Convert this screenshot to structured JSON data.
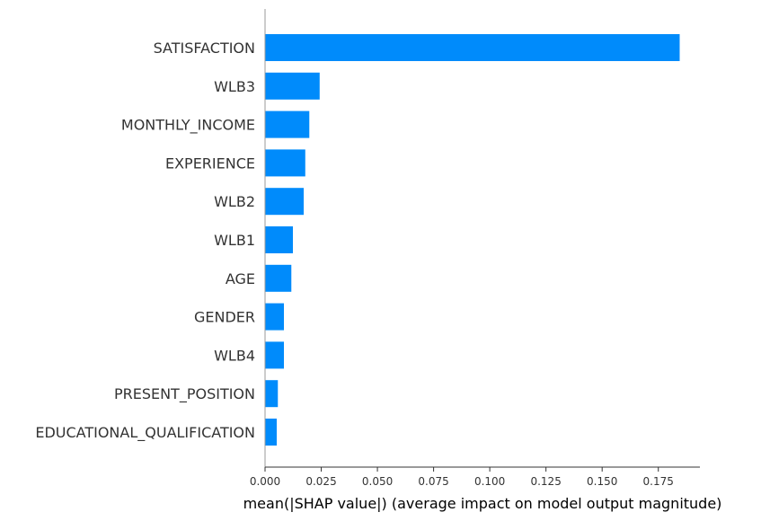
{
  "chart_data": {
    "type": "bar",
    "orientation": "horizontal",
    "categories": [
      "SATISFACTION",
      "WLB3",
      "MONTHLY_INCOME",
      "EXPERIENCE",
      "WLB2",
      "WLB1",
      "AGE",
      "GENDER",
      "WLB4",
      "PRESENT_POSITION",
      "EDUCATIONAL_QUALIFICATION"
    ],
    "values": [
      0.1845,
      0.0243,
      0.0197,
      0.0179,
      0.0172,
      0.0124,
      0.0117,
      0.0084,
      0.0084,
      0.0057,
      0.0052
    ],
    "xlabel": "mean(|SHAP value|) (average impact on model output magnitude)",
    "xticks": [
      "0.000",
      "0.025",
      "0.050",
      "0.075",
      "0.100",
      "0.125",
      "0.150",
      "0.175"
    ],
    "xlim": [
      0,
      0.1935
    ],
    "bar_color": "#008bfb",
    "grid": false
  }
}
